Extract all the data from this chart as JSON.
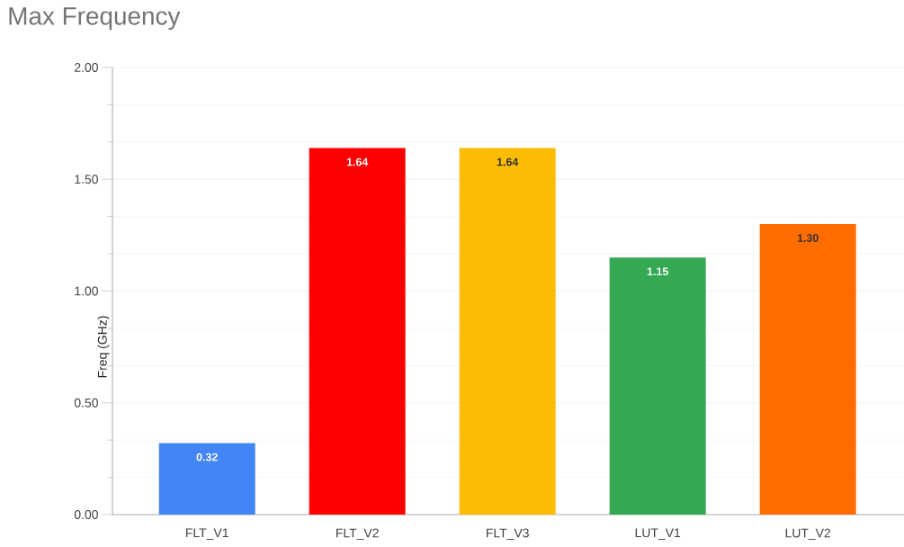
{
  "chart_data": {
    "type": "bar",
    "title": "Max Frequency",
    "ylabel": "Freq (GHz)",
    "categories": [
      "FLT_V1",
      "FLT_V2",
      "FLT_V3",
      "LUT_V1",
      "LUT_V2"
    ],
    "values": [
      0.32,
      1.64,
      1.64,
      1.15,
      1.3
    ],
    "colors": [
      "#4285f4",
      "#ff0000",
      "#fbbc04",
      "#34a853",
      "#ff6d01"
    ],
    "value_labels": [
      "0.32",
      "1.64",
      "1.64",
      "1.15",
      "1.30"
    ],
    "ylim": [
      0,
      2
    ],
    "yticks": [
      {
        "value": 0,
        "label": "0.00"
      },
      {
        "value": 0.5,
        "label": "0.50"
      },
      {
        "value": 1,
        "label": "1.00"
      },
      {
        "value": 1.5,
        "label": "1.50"
      },
      {
        "value": 2,
        "label": "2.00"
      }
    ],
    "grid": "y"
  }
}
